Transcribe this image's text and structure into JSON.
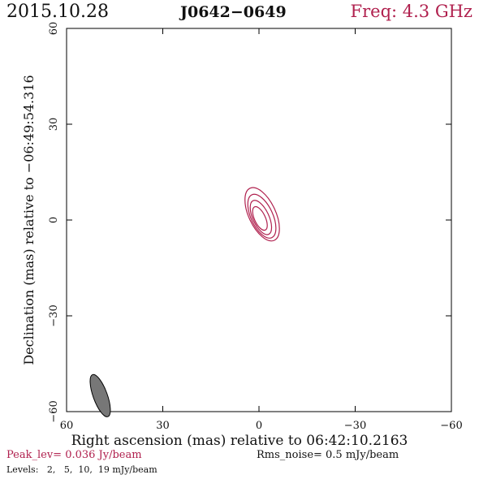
{
  "header": {
    "date": "2015.10.28",
    "source": "J0642−0649",
    "freq": "Freq: 4.3 GHz"
  },
  "footer": {
    "peak": "Peak_lev=  0.036 Jy/beam",
    "rms": "Rms_noise=  0.5 mJy/beam",
    "levels": "Levels:   2,   5,  10,  19 mJy/beam"
  },
  "colors": {
    "contour": "#b0204e",
    "beam_fill": "#777777",
    "axis": "#000000"
  },
  "chart_data": {
    "type": "contour",
    "xlabel": "Right ascension (mas) relative to 06:42:10.2163",
    "ylabel": "Declination (mas) relative to −06:49:54.316",
    "xlim": [
      60,
      -60
    ],
    "ylim": [
      -60,
      60
    ],
    "xticks": [
      60,
      30,
      0,
      -30,
      -60
    ],
    "yticks": [
      -60,
      -30,
      0,
      30,
      60
    ],
    "x_tick_labels": [
      "60",
      "30",
      "0",
      "−30",
      "−60"
    ],
    "y_tick_labels": [
      "−60",
      "−30",
      "0",
      "30",
      "60"
    ],
    "levels_mJy_per_beam": [
      2,
      5,
      10,
      19
    ],
    "peak_Jy_per_beam": 0.036,
    "rms_mJy_per_beam": 0.5,
    "source_component": {
      "center_mas": [
        -1.0,
        1.0
      ],
      "position_angle_deg": -25,
      "contours": [
        {
          "level": 2,
          "semi_major_mas": 9.0,
          "semi_minor_mas": 4.2,
          "center_mas": [
            -1.0,
            1.8
          ]
        },
        {
          "level": 5,
          "semi_major_mas": 7.4,
          "semi_minor_mas": 3.4,
          "center_mas": [
            -0.9,
            1.2
          ]
        },
        {
          "level": 10,
          "semi_major_mas": 5.8,
          "semi_minor_mas": 2.5,
          "center_mas": [
            -0.6,
            0.8
          ]
        },
        {
          "level": 19,
          "semi_major_mas": 4.0,
          "semi_minor_mas": 1.7,
          "center_mas": [
            -0.3,
            0.5
          ]
        }
      ]
    },
    "beam": {
      "center_mas": [
        49.5,
        -55.0
      ],
      "major_mas": 7.0,
      "minor_mas": 2.2,
      "position_angle_deg": -20
    }
  }
}
